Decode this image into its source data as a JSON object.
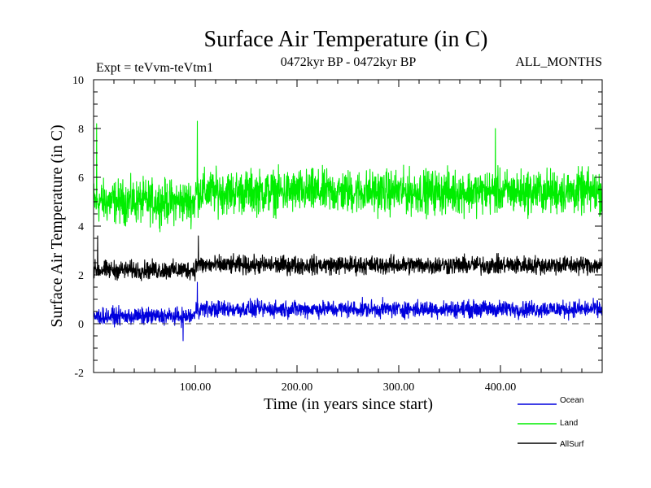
{
  "chart_data": {
    "type": "line",
    "title": "Surface Air Temperature (in C)",
    "subtitle": "0472kyr BP - 0472kyr BP",
    "experiment": "Expt = teVvm-teVtm1",
    "months": "ALL_MONTHS",
    "xlabel": "Time (in years since start)",
    "ylabel": "Surface Air Temperature (in C)",
    "xlim": [
      0,
      500
    ],
    "ylim": [
      -2,
      10
    ],
    "x_ticks": [
      100,
      200,
      300,
      400
    ],
    "x_tick_labels": [
      "100.00",
      "200.00",
      "300.00",
      "400.00"
    ],
    "y_ticks": [
      -2,
      0,
      2,
      4,
      6,
      8,
      10
    ],
    "y_tick_labels": [
      "-2",
      "0",
      "2",
      "4",
      "6",
      "8",
      "10"
    ],
    "zero_line": 0,
    "series": [
      {
        "name": "Land",
        "color": "#00ee00",
        "segments": [
          {
            "x_start": 0,
            "x_end": 100,
            "mean": 5.0,
            "spread": 2.6
          },
          {
            "x_start": 100,
            "x_end": 500,
            "mean": 5.4,
            "spread": 2.6
          }
        ],
        "peaks": [
          {
            "x": 3,
            "y": 8.2
          },
          {
            "x": 102,
            "y": 8.3
          },
          {
            "x": 395,
            "y": 8.0
          }
        ]
      },
      {
        "name": "AllSurf",
        "color": "#000000",
        "segments": [
          {
            "x_start": 0,
            "x_end": 100,
            "mean": 2.2,
            "spread": 1.1
          },
          {
            "x_start": 100,
            "x_end": 500,
            "mean": 2.4,
            "spread": 1.1
          }
        ],
        "peaks": [
          {
            "x": 4,
            "y": 3.6
          },
          {
            "x": 103,
            "y": 3.6
          }
        ]
      },
      {
        "name": "Ocean",
        "color": "#0000dd",
        "segments": [
          {
            "x_start": 0,
            "x_end": 100,
            "mean": 0.3,
            "spread": 1.0
          },
          {
            "x_start": 100,
            "x_end": 500,
            "mean": 0.6,
            "spread": 1.0
          }
        ],
        "peaks": [
          {
            "x": 102,
            "y": 1.7
          },
          {
            "x": 88,
            "y": -0.7
          }
        ]
      }
    ],
    "legend": [
      "Ocean",
      "Land",
      "AllSurf"
    ],
    "legend_position": "bottom-right"
  }
}
